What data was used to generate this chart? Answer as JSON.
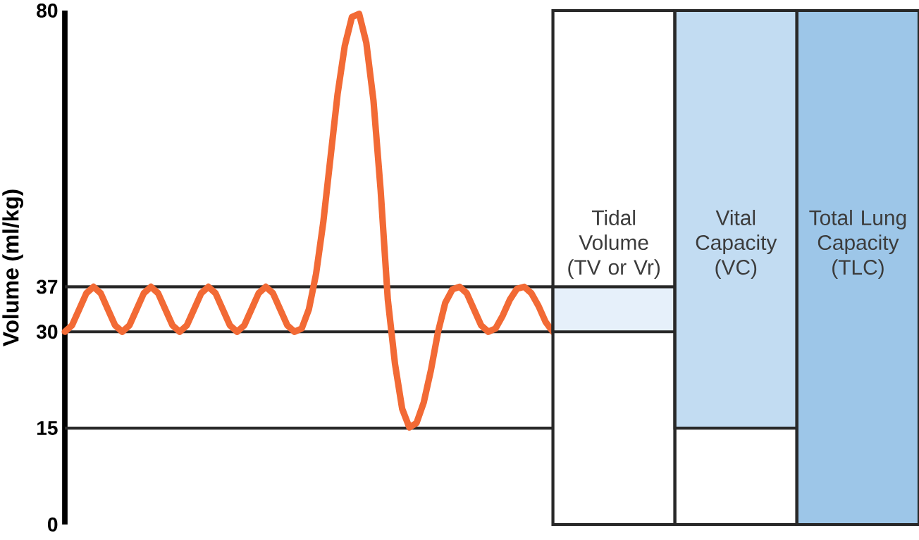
{
  "chart_data": [
    {
      "type": "line",
      "ylabel": "Volume (ml/kg)",
      "categories": [
        null,
        null,
        null,
        null,
        null,
        null,
        null,
        null,
        null,
        null,
        null,
        null,
        null,
        null,
        null,
        null,
        null,
        null,
        null,
        null,
        null,
        null,
        null,
        null,
        null,
        null,
        null,
        null,
        null,
        null,
        null,
        null,
        null,
        null,
        null,
        null,
        null,
        null,
        null,
        null,
        null,
        null,
        null,
        null,
        null,
        null,
        null,
        null,
        null,
        null,
        null,
        null,
        null,
        null,
        null,
        null,
        null,
        null,
        null,
        null,
        null,
        null,
        null,
        null,
        null,
        null,
        null,
        null,
        null
      ],
      "ylim": [
        0,
        80
      ],
      "yticks": [
        0,
        15,
        30,
        37,
        80
      ],
      "tick_labels": "y",
      "series": [
        {
          "color": "#f26a35",
          "values": [
            30,
            31,
            33.5,
            36,
            37,
            36,
            33.5,
            31,
            30,
            31,
            33.5,
            36,
            37,
            36,
            33.5,
            31,
            30,
            31,
            33.5,
            36,
            37,
            36,
            33.5,
            31,
            30,
            31,
            33.5,
            36,
            37,
            36,
            33.5,
            31,
            30,
            30.5,
            33.5,
            39,
            47,
            57,
            67,
            74.5,
            79,
            79.5,
            75,
            66,
            52,
            35,
            25,
            18,
            15.1,
            15.8,
            19,
            24,
            30,
            34.5,
            36.6,
            37,
            36,
            33.5,
            31,
            30,
            30.5,
            32.5,
            35,
            36.7,
            37,
            36,
            34,
            31.5,
            30
          ]
        }
      ],
      "ref_lines": [
        {
          "axis": "y",
          "value": 15
        },
        {
          "axis": "y",
          "value": 30
        },
        {
          "axis": "y",
          "value": 37
        }
      ]
    },
    {
      "type": "bar",
      "categories": [
        "Tidal Volume (TV or Vr)",
        "Vital Capacity (VC)",
        "Total Lung Capacity (TLC)"
      ],
      "ylim": [
        0,
        80
      ],
      "tick_labels": false,
      "base": [
        30,
        15,
        0
      ],
      "values": [
        7,
        65,
        80
      ],
      "colors": [
        "#e6f0fa",
        "#c2dcf2",
        "#9dc6e8"
      ]
    }
  ]
}
